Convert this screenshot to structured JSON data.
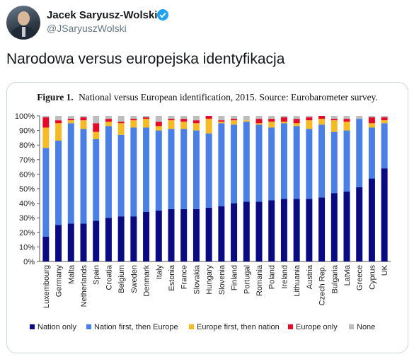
{
  "author": {
    "name": "Jacek Saryusz-Wolski",
    "handle": "@JSaryuszWolski",
    "verified_icon": "verified-badge-icon"
  },
  "tweet": {
    "text": "Narodowa versus europejska identyfikacja"
  },
  "colors": {
    "nation_only": "#0a0a82",
    "nation_first": "#4a7fe6",
    "europe_first": "#f5bb24",
    "europe_only": "#e5092a",
    "none": "#bdbdbd",
    "twitter_blue": "#1da1f2"
  },
  "chart_data": {
    "type": "bar",
    "stacked": true,
    "title_bold": "Figure 1.",
    "title": "National versus European identification, 2015. Source: Eurobarometer survey.",
    "categories": [
      "Luxembourg",
      "Germany",
      "Malta",
      "Netherlands",
      "Spain",
      "Croatia",
      "Belgium",
      "Sweden",
      "Denmark",
      "Italy",
      "Estonia",
      "France",
      "Slovakia",
      "Hungary",
      "Slovenia",
      "Finland",
      "Portugal",
      "Romania",
      "Poland",
      "Ireland",
      "Lithuania",
      "Austria",
      "Czech Rep.",
      "Bulgaria",
      "Latvia",
      "Greece",
      "Cyprus",
      "UK"
    ],
    "series": [
      {
        "name": "Nation only",
        "values": [
          17,
          25,
          26,
          26,
          28,
          30,
          31,
          31,
          34,
          35,
          36,
          36,
          36,
          37,
          38,
          40,
          41,
          41,
          42,
          43,
          43,
          43,
          44,
          47,
          48,
          51,
          57,
          64
        ]
      },
      {
        "name": "Nation first, then Europe",
        "values": [
          61,
          58,
          69,
          65,
          56,
          63,
          56,
          61,
          58,
          55,
          55,
          55,
          54,
          51,
          57,
          54,
          55,
          53,
          50,
          52,
          50,
          48,
          50,
          42,
          42,
          47,
          35,
          31
        ]
      },
      {
        "name": "Europe first, then nation",
        "values": [
          14,
          12,
          2,
          6,
          5,
          3,
          8,
          5,
          6,
          3,
          6,
          5,
          5,
          10,
          1,
          3,
          1,
          1,
          4,
          1,
          2,
          6,
          4,
          8,
          6,
          0,
          3,
          2
        ]
      },
      {
        "name": "Europe only",
        "values": [
          7,
          2,
          1,
          2,
          6,
          2,
          1,
          1,
          1,
          3,
          1,
          2,
          2,
          2,
          1,
          1,
          0,
          3,
          2,
          3,
          3,
          2,
          2,
          1,
          2,
          0,
          4,
          2
        ]
      },
      {
        "name": "None",
        "values": [
          1,
          3,
          2,
          1,
          5,
          2,
          4,
          2,
          1,
          4,
          2,
          2,
          3,
          0,
          3,
          2,
          3,
          2,
          2,
          1,
          2,
          1,
          0,
          2,
          2,
          2,
          1,
          1
        ]
      }
    ],
    "ylim": [
      0,
      100
    ],
    "yticks": [
      "0%",
      "10%",
      "20%",
      "30%",
      "40%",
      "50%",
      "60%",
      "70%",
      "80%",
      "90%",
      "100%"
    ],
    "grid": false,
    "legend_position": "bottom"
  }
}
